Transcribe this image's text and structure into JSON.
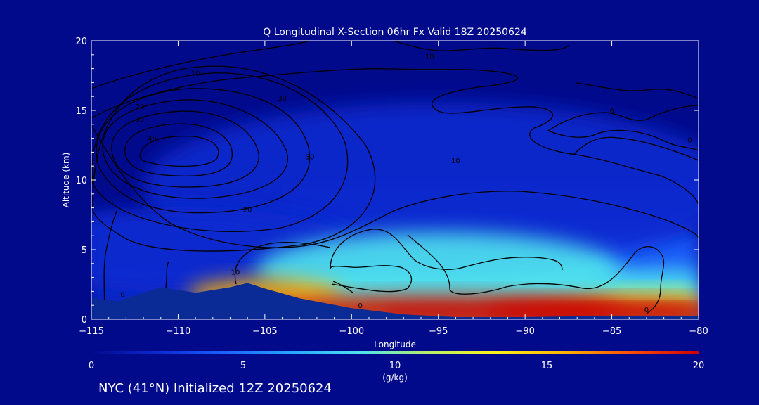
{
  "chart_data": {
    "type": "heatmap",
    "title": "Q Longitudinal X-Section 06hr  Fx Valid 18Z 20250624",
    "xlabel": "Longitude",
    "ylabel": "Altitude (km)",
    "xlim": [
      -115,
      -80
    ],
    "ylim": [
      0,
      20
    ],
    "x_ticks": [
      -115,
      -110,
      -105,
      -100,
      -95,
      -90,
      -85,
      -80
    ],
    "x_tick_labels": [
      "−115",
      "−110",
      "−105",
      "−100",
      "−95",
      "−90",
      "−85",
      "−80"
    ],
    "y_ticks": [
      0,
      5,
      10,
      15,
      20
    ],
    "y_tick_labels": [
      "0",
      "5",
      "10",
      "15",
      "20"
    ],
    "colorbar": {
      "label": "(g/kg)",
      "range": [
        0,
        20
      ],
      "ticks": [
        0,
        5,
        10,
        15,
        20
      ],
      "tick_labels": [
        "0",
        "5",
        "10",
        "15",
        "20"
      ],
      "colors": [
        "#020a8c",
        "#0b2ad0",
        "#1f62ff",
        "#27a9ff",
        "#4fe3ee",
        "#b8f064",
        "#fff21a",
        "#ffb400",
        "#ff4d00",
        "#cc0000"
      ]
    },
    "moisture_field": [
      {
        "lon": -105,
        "alt": 1.8,
        "q": 14
      },
      {
        "lon": -95,
        "alt": 0.7,
        "q": 18
      },
      {
        "lon": -85,
        "alt": 0.6,
        "q": 19
      },
      {
        "lon": -95,
        "alt": 3.5,
        "q": 8
      },
      {
        "lon": -110,
        "alt": 5,
        "q": 3
      },
      {
        "lon": -95,
        "alt": 9.5,
        "q": 2
      }
    ],
    "terrain": [
      {
        "lon": -115,
        "alt": 1.5
      },
      {
        "lon": -113.5,
        "alt": 1.3
      },
      {
        "lon": -112.5,
        "alt": 1.7
      },
      {
        "lon": -111,
        "alt": 2.3
      },
      {
        "lon": -109,
        "alt": 1.9
      },
      {
        "lon": -107,
        "alt": 2.3
      },
      {
        "lon": -106,
        "alt": 2.6
      },
      {
        "lon": -105,
        "alt": 2.2
      },
      {
        "lon": -103,
        "alt": 1.5
      },
      {
        "lon": -100,
        "alt": 0.8
      },
      {
        "lon": -97,
        "alt": 0.35
      },
      {
        "lon": -94,
        "alt": 0.15
      },
      {
        "lon": -90,
        "alt": 0.15
      },
      {
        "lon": -85,
        "alt": 0.25
      },
      {
        "lon": -80,
        "alt": 0.25
      }
    ],
    "contour_labels": [
      {
        "text": "10",
        "lon": -109,
        "alt": 17.5
      },
      {
        "text": "20",
        "lon": -112.2,
        "alt": 15.1
      },
      {
        "text": "30",
        "lon": -112.2,
        "alt": 14.2
      },
      {
        "text": "40",
        "lon": -111.5,
        "alt": 12.8
      },
      {
        "text": "30",
        "lon": -104,
        "alt": 15.7
      },
      {
        "text": "30",
        "lon": -102.4,
        "alt": 11.5
      },
      {
        "text": "10",
        "lon": -95.5,
        "alt": 18.7
      },
      {
        "text": "10",
        "lon": -94,
        "alt": 11.2
      },
      {
        "text": "20",
        "lon": -106,
        "alt": 7.7
      },
      {
        "text": "0",
        "lon": -85,
        "alt": 14.8
      },
      {
        "text": "0",
        "lon": -80.5,
        "alt": 12.7
      },
      {
        "text": "10",
        "lon": -106.7,
        "alt": 3.2
      },
      {
        "text": "0",
        "lon": -99.5,
        "alt": 0.8
      },
      {
        "text": "0",
        "lon": -83,
        "alt": 0.5
      },
      {
        "text": "0",
        "lon": -113.2,
        "alt": 1.6
      }
    ]
  },
  "footer": "NYC (41°N) Initialized 12Z 20250624"
}
